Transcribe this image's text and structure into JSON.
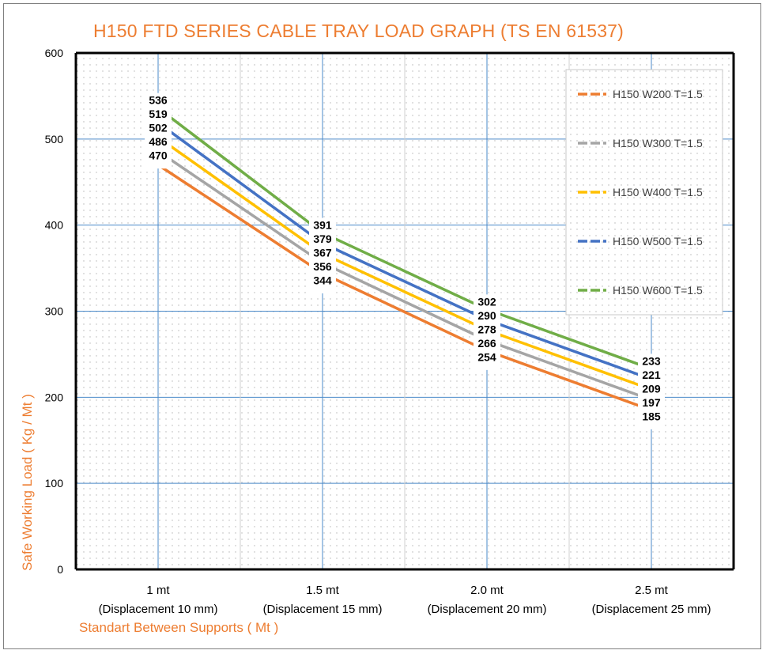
{
  "chart_data": {
    "type": "line",
    "title": "H150 FTD SERIES CABLE TRAY LOAD GRAPH (TS EN 61537)",
    "xlabel": "Standart Between Supports ( Mt )",
    "ylabel": "Safe Working Load ( Kg / Mt )",
    "ylim": [
      0,
      600
    ],
    "yticks": [
      "0",
      "100",
      "200",
      "300",
      "400",
      "500",
      "600"
    ],
    "categories": [
      [
        "1 mt",
        "(Displacement 10 mm)"
      ],
      [
        "1.5 mt",
        "(Displacement 15 mm)"
      ],
      [
        "2.0 mt",
        "(Displacement 20 mm)"
      ],
      [
        "2.5 mt",
        "(Displacement 25 mm)"
      ]
    ],
    "grid": true,
    "legend_position": "right",
    "series": [
      {
        "name": "H150 W200 T=1.5",
        "color": "#ed7d31",
        "values": [
          470,
          344,
          254,
          185
        ]
      },
      {
        "name": "H150 W300 T=1.5",
        "color": "#a5a5a5",
        "values": [
          486,
          356,
          266,
          197
        ]
      },
      {
        "name": "H150 W400 T=1.5",
        "color": "#ffc000",
        "values": [
          502,
          367,
          278,
          209
        ]
      },
      {
        "name": "H150 W500 T=1.5",
        "color": "#4472c4",
        "values": [
          519,
          379,
          290,
          221
        ]
      },
      {
        "name": "H150 W600 T=1.5",
        "color": "#70ad47",
        "values": [
          536,
          391,
          302,
          233
        ]
      }
    ]
  }
}
